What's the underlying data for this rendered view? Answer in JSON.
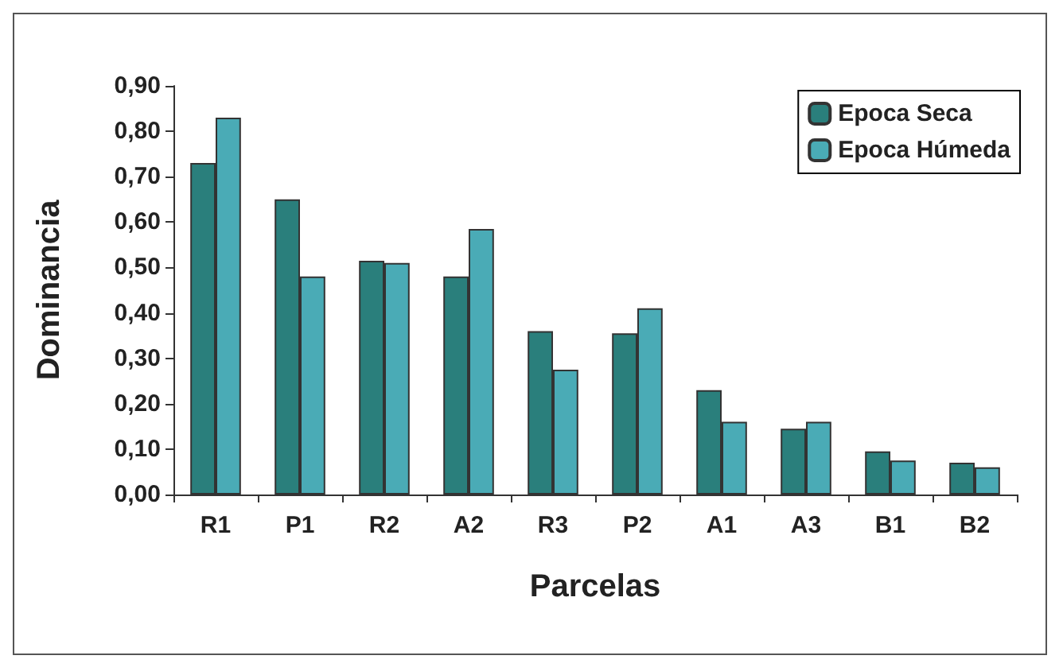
{
  "chart_data": {
    "type": "bar",
    "xlabel": "Parcelas",
    "ylabel": "Dominancia",
    "categories": [
      "R1",
      "P1",
      "R2",
      "A2",
      "R3",
      "P2",
      "A1",
      "A3",
      "B1",
      "B2"
    ],
    "series": [
      {
        "name": "Epoca Seca",
        "color": "#2a7f7c",
        "values": [
          0.73,
          0.65,
          0.515,
          0.48,
          0.36,
          0.355,
          0.23,
          0.145,
          0.095,
          0.07
        ]
      },
      {
        "name": "Epoca Húmeda",
        "color": "#4aabb6",
        "values": [
          0.83,
          0.48,
          0.51,
          0.585,
          0.275,
          0.41,
          0.16,
          0.16,
          0.075,
          0.06
        ]
      }
    ],
    "ylim": [
      0,
      0.9
    ],
    "yticks": [
      {
        "value": 0,
        "label": "0,00"
      },
      {
        "value": 0.1,
        "label": "0,10"
      },
      {
        "value": 0.2,
        "label": "0,20"
      },
      {
        "value": 0.3,
        "label": "0,30"
      },
      {
        "value": 0.4,
        "label": "0,40"
      },
      {
        "value": 0.5,
        "label": "0,50"
      },
      {
        "value": 0.6,
        "label": "0,60"
      },
      {
        "value": 0.7,
        "label": "0,70"
      },
      {
        "value": 0.8,
        "label": "0,80"
      },
      {
        "value": 0.9,
        "label": "0,90"
      }
    ],
    "grid": false,
    "legend": "top right"
  }
}
